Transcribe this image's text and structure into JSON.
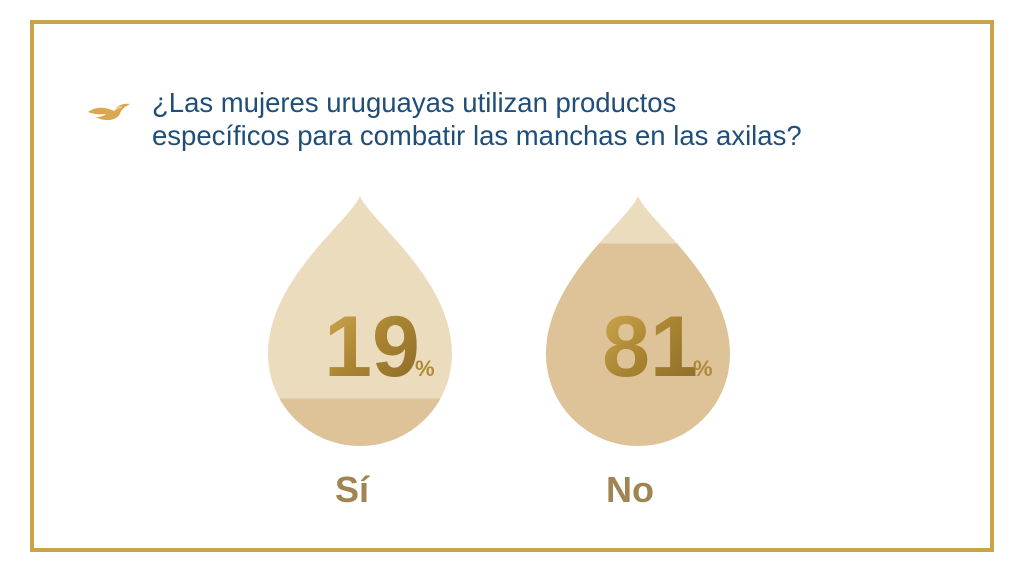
{
  "question": {
    "line1": "¿Las mujeres uruguayas utilizan productos",
    "line2": "específicos para combatir las manchas en las axilas?"
  },
  "chart_data": {
    "type": "bar",
    "categories": [
      "Sí",
      "No"
    ],
    "values": [
      19,
      81
    ],
    "value_suffix": "%",
    "ylim": [
      0,
      100
    ]
  },
  "colors": {
    "frame": "#c9a24a",
    "question_text": "#1f4e79",
    "drop_light": "#ecdcbe",
    "drop_fill": "#ddc397",
    "value_text": "#b08a3a",
    "category_text": "#a08452",
    "logo": "#d9a850"
  },
  "icons": {
    "logo": "dove-icon"
  }
}
